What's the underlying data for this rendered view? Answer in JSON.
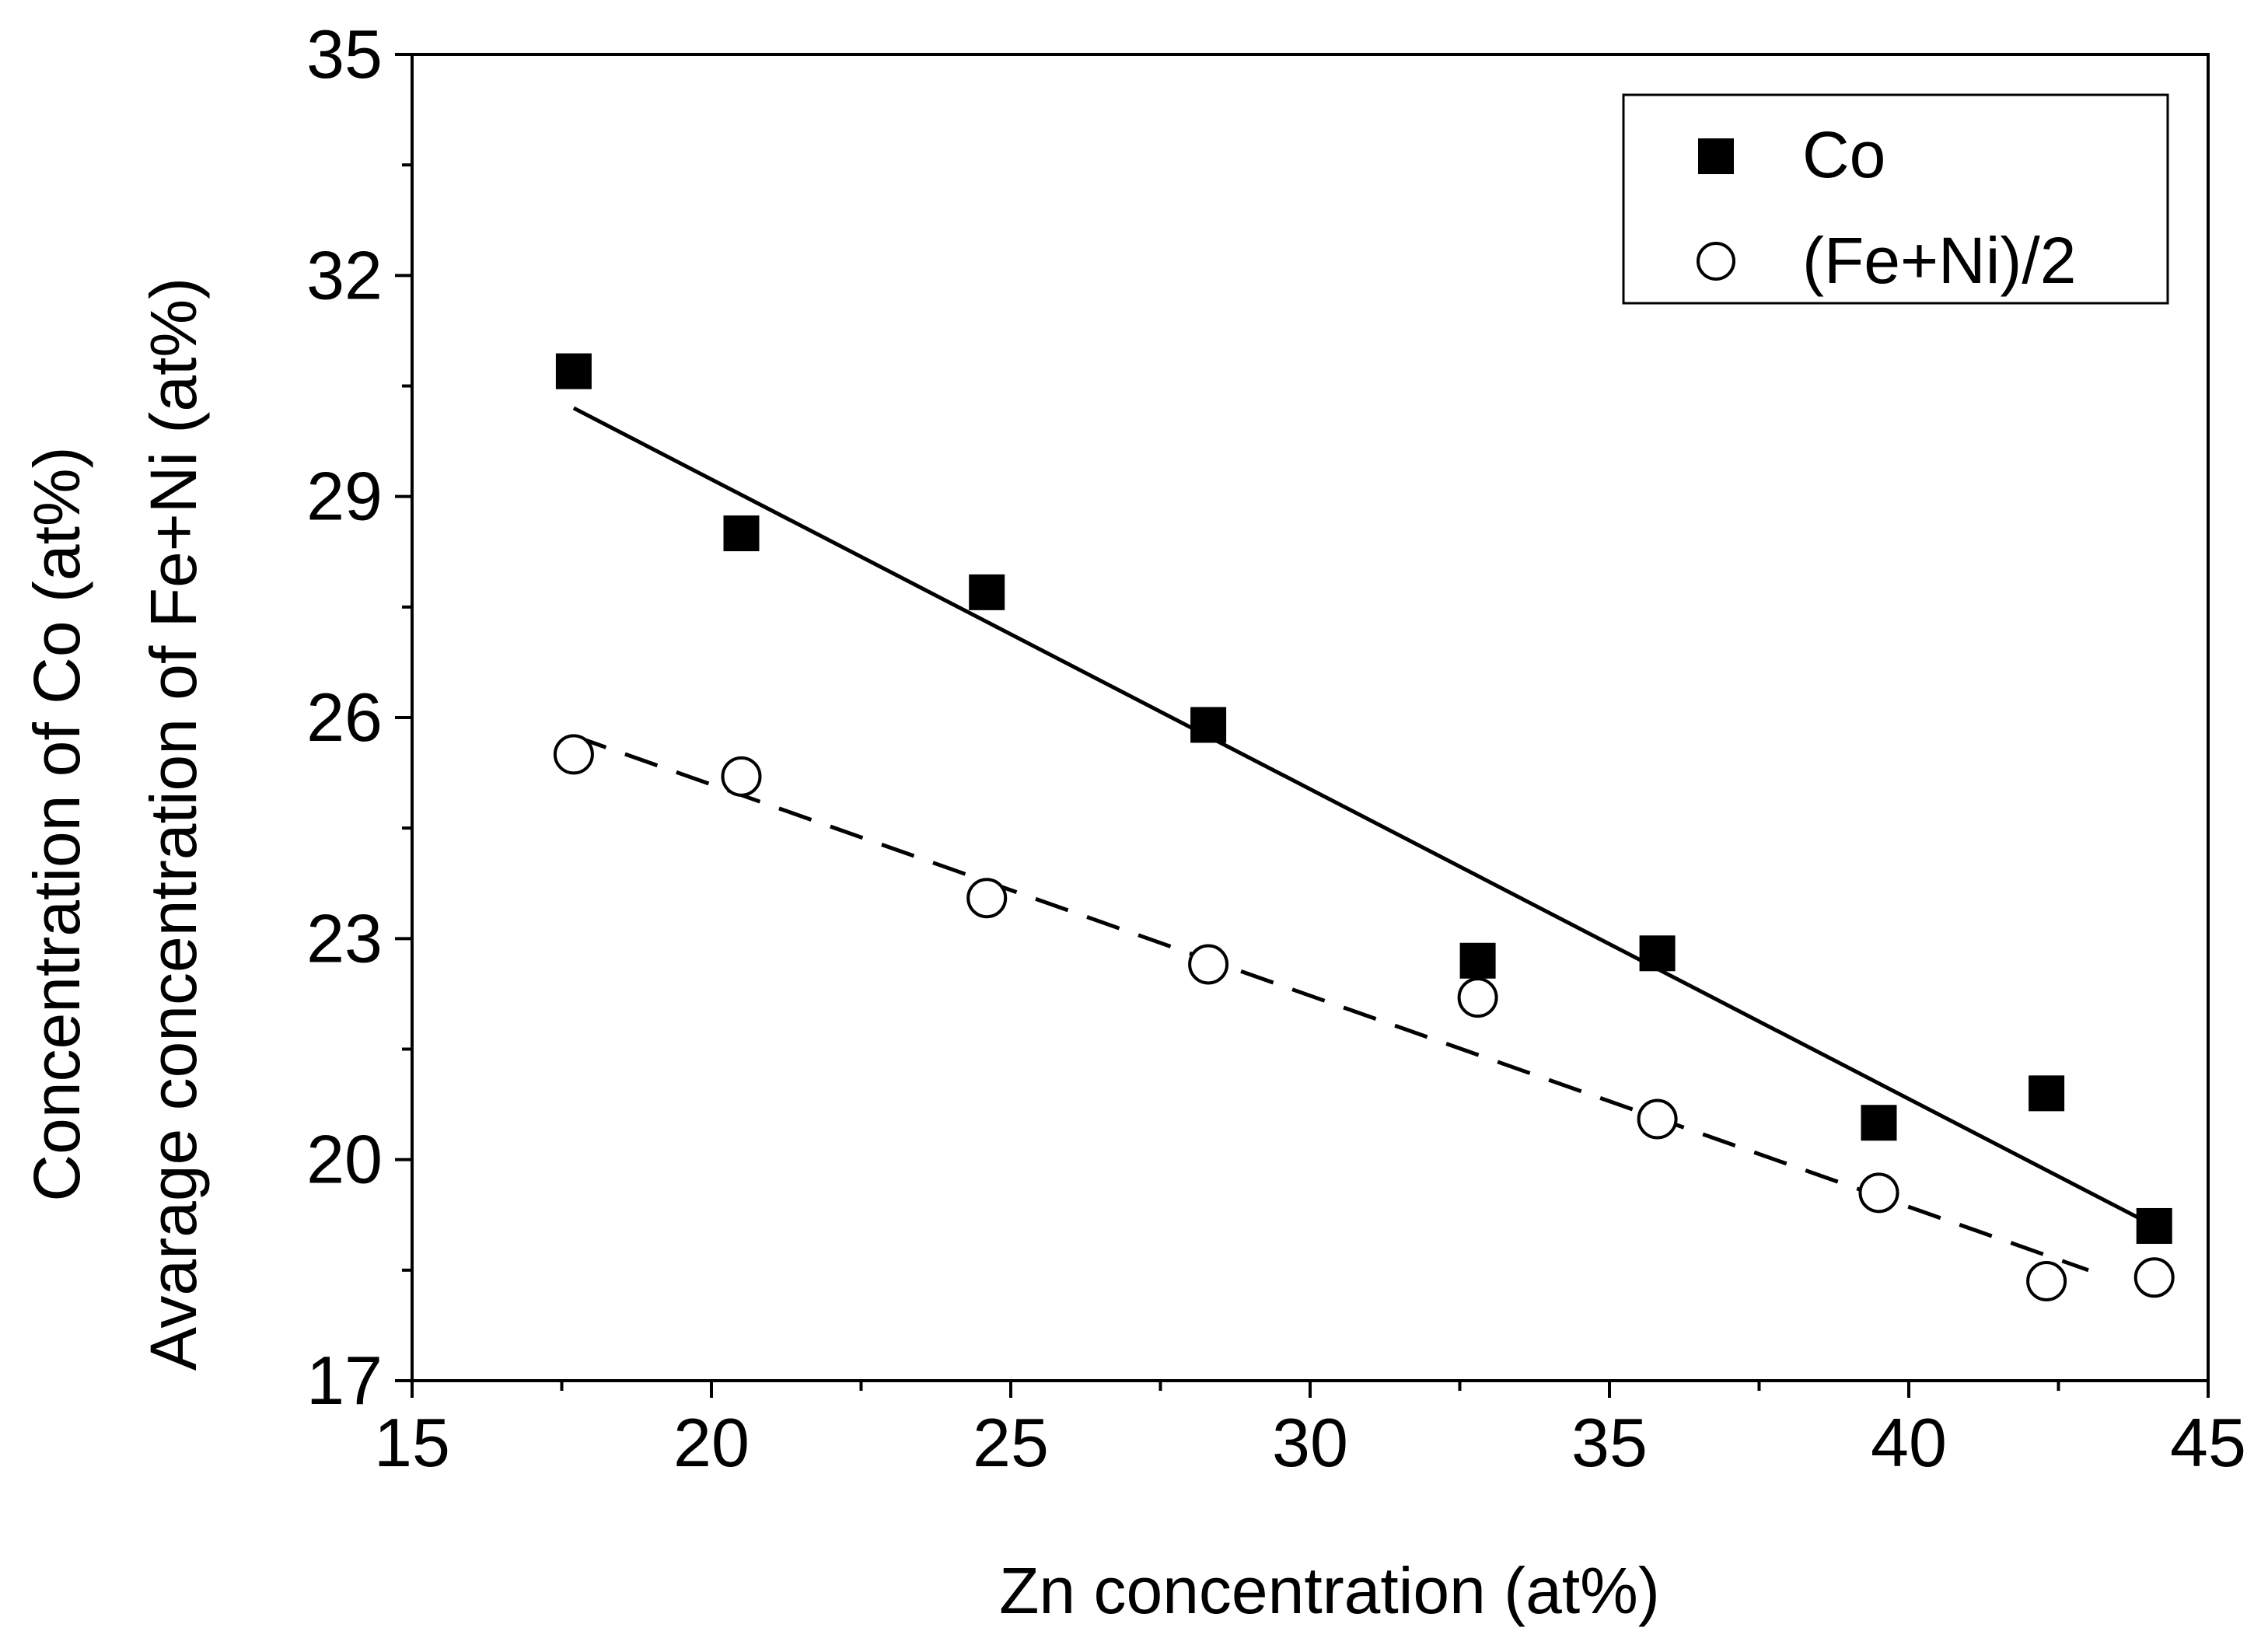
{
  "chart_data": {
    "type": "scatter",
    "xlabel": "Zn concentration (at%)",
    "ylabel_line1": "Concentration of Co (at%)",
    "ylabel_line2": "Avarage concentration of Fe+Ni (at%)",
    "xlim": [
      15,
      45
    ],
    "ylim": [
      17,
      35
    ],
    "xticks": [
      15,
      20,
      25,
      30,
      35,
      40,
      45
    ],
    "yticks": [
      17,
      20,
      23,
      26,
      29,
      32,
      35
    ],
    "x_minor_step": 2.5,
    "y_minor_step": 1.5,
    "legend_position": "top-right",
    "series": [
      {
        "name": "Co",
        "marker": "filled-square",
        "x": [
          17.7,
          20.5,
          24.6,
          28.3,
          32.8,
          35.8,
          39.5,
          42.3,
          44.1
        ],
        "y": [
          30.7,
          28.5,
          27.7,
          25.9,
          22.7,
          22.8,
          20.5,
          20.9,
          19.1
        ],
        "fit": {
          "style": "solid",
          "x": [
            17.7,
            44.1
          ],
          "y": [
            30.2,
            19.1
          ]
        }
      },
      {
        "name": "(Fe+Ni)/2",
        "marker": "open-circle",
        "x": [
          17.7,
          20.5,
          24.6,
          28.3,
          32.8,
          35.8,
          39.5,
          42.3,
          44.1
        ],
        "y": [
          25.5,
          25.2,
          23.55,
          22.65,
          22.2,
          20.55,
          19.55,
          18.35,
          18.4
        ],
        "fit": {
          "style": "dashed",
          "x": [
            17.7,
            43.0
          ],
          "y": [
            25.75,
            18.5
          ]
        }
      }
    ]
  },
  "colors": {
    "axis": "#000000",
    "marker_fill": "#000000",
    "open_marker_fill": "#ffffff",
    "background": "#ffffff"
  }
}
